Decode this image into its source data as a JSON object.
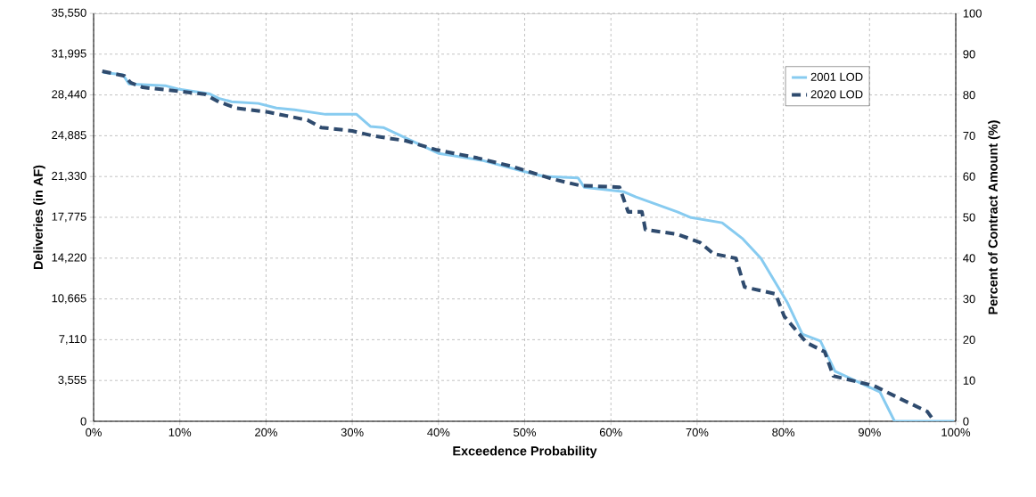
{
  "chart_data": {
    "type": "line",
    "xlabel": "Exceedence Probability",
    "ylabel": "Deliveries (in AF)",
    "y2label": "Percent of Contract Amount (%)",
    "xlim": [
      0,
      100
    ],
    "ylim": [
      0,
      35550
    ],
    "y2lim": [
      0,
      100
    ],
    "xticks": [
      {
        "value": 0,
        "label": "0%"
      },
      {
        "value": 10,
        "label": "10%"
      },
      {
        "value": 20,
        "label": "20%"
      },
      {
        "value": 30,
        "label": "30%"
      },
      {
        "value": 40,
        "label": "40%"
      },
      {
        "value": 50,
        "label": "50%"
      },
      {
        "value": 60,
        "label": "60%"
      },
      {
        "value": 70,
        "label": "70%"
      },
      {
        "value": 80,
        "label": "80%"
      },
      {
        "value": 90,
        "label": "90%"
      },
      {
        "value": 100,
        "label": "100%"
      }
    ],
    "yticks": [
      {
        "value": 0,
        "label": "0"
      },
      {
        "value": 3555,
        "label": "3,555"
      },
      {
        "value": 7110,
        "label": "7,110"
      },
      {
        "value": 10665,
        "label": "10,665"
      },
      {
        "value": 14220,
        "label": "14,220"
      },
      {
        "value": 17775,
        "label": "17,775"
      },
      {
        "value": 21330,
        "label": "21,330"
      },
      {
        "value": 24885,
        "label": "24,885"
      },
      {
        "value": 28440,
        "label": "28,440"
      },
      {
        "value": 31995,
        "label": "31,995"
      },
      {
        "value": 35550,
        "label": "35,550"
      }
    ],
    "y2ticks": [
      0,
      10,
      20,
      30,
      40,
      50,
      60,
      70,
      80,
      90,
      100
    ],
    "grid": true,
    "legend": "top right",
    "marker": "none",
    "series": [
      {
        "name": "2001 LOD",
        "color": "#87cbf0",
        "line_style": "solid",
        "x": [
          1.1,
          3.4,
          4.1,
          8.3,
          9.8,
          13.4,
          14.5,
          16.0,
          19.1,
          21.2,
          23.3,
          26.9,
          30.5,
          32.1,
          33.6,
          35.2,
          40.0,
          45.0,
          50.0,
          52.2,
          56.2,
          56.9,
          61.5,
          62.9,
          65.7,
          67.7,
          69.3,
          72.9,
          75.3,
          77.4,
          80.5,
          82.2,
          84.3,
          86.0,
          91.2,
          92.9,
          99.8
        ],
        "values": [
          30400,
          30200,
          29400,
          29250,
          28950,
          28550,
          28150,
          27850,
          27700,
          27300,
          27150,
          26750,
          26750,
          25700,
          25600,
          25050,
          23350,
          22750,
          21750,
          21350,
          21200,
          20400,
          20000,
          19550,
          18800,
          18250,
          17750,
          17300,
          15900,
          14200,
          10300,
          7600,
          7000,
          4350,
          2550,
          0,
          0
        ]
      },
      {
        "name": "2020 LOD",
        "color": "#2f4b6e",
        "line_style": "dashed",
        "x": [
          1.0,
          3.6,
          4.3,
          5.7,
          8.8,
          12.9,
          14.5,
          16.5,
          20.2,
          24.8,
          26.4,
          30.0,
          32.6,
          36.2,
          39.8,
          44.5,
          48.6,
          53.3,
          56.4,
          61.0,
          62.0,
          63.6,
          64.0,
          67.7,
          70.3,
          71.9,
          74.5,
          75.5,
          79.1,
          80.1,
          82.7,
          84.8,
          85.8,
          90.5,
          93.6,
          96.7,
          97.5
        ],
        "values": [
          30500,
          30100,
          29500,
          29100,
          28850,
          28500,
          27850,
          27300,
          26950,
          26250,
          25600,
          25300,
          24850,
          24450,
          23650,
          22950,
          22200,
          21100,
          20550,
          20400,
          18250,
          18250,
          16700,
          16300,
          15600,
          14600,
          14200,
          11700,
          11100,
          9150,
          6850,
          6050,
          3950,
          3100,
          1950,
          850,
          0
        ]
      }
    ]
  }
}
